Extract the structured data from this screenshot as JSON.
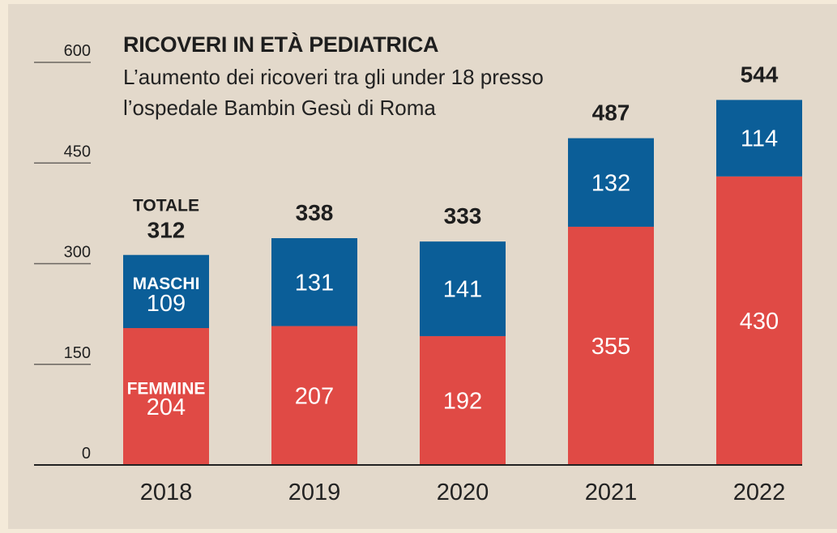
{
  "chart_data": {
    "type": "bar",
    "stacked": true,
    "title": "RICOVERI IN ETÀ PEDIATRICA",
    "subtitle": [
      "L’aumento dei ricoveri tra gli under 18 presso",
      "l’ospedale Bambin Gesù di Roma"
    ],
    "categories": [
      "2018",
      "2019",
      "2020",
      "2021",
      "2022"
    ],
    "series": [
      {
        "name": "FEMMINE",
        "values": [
          204,
          207,
          192,
          355,
          430
        ],
        "color": "#e04a45"
      },
      {
        "name": "MASCHI",
        "values": [
          109,
          131,
          141,
          132,
          114
        ],
        "color": "#0b5e98"
      }
    ],
    "totals": [
      312,
      338,
      333,
      487,
      544
    ],
    "totals_label": "TOTALE",
    "yticks": [
      0,
      150,
      300,
      450,
      600
    ],
    "ylim": [
      0,
      600
    ],
    "xlabel": "",
    "ylabel": "",
    "legend": "inline labels on first bar"
  }
}
